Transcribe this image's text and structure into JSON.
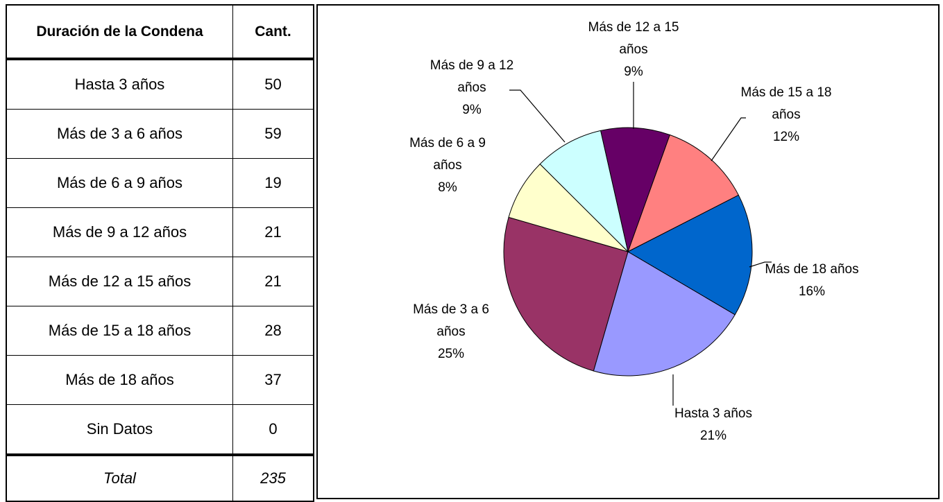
{
  "table": {
    "header": [
      "Duración de la Condena",
      "Cant."
    ],
    "rows": [
      [
        "Hasta 3 años",
        "50"
      ],
      [
        "Más de 3 a 6 años",
        "59"
      ],
      [
        "Más de 6 a 9 años",
        "19"
      ],
      [
        "Más de 9 a 12 años",
        "21"
      ],
      [
        "Más de 12 a 15 años",
        "21"
      ],
      [
        "Más de 15 a 18 años",
        "28"
      ],
      [
        "Más de 18 años",
        "37"
      ],
      [
        "Sin Datos",
        "0"
      ]
    ],
    "total": [
      "Total",
      "235"
    ]
  },
  "chart_data": {
    "type": "pie",
    "categories": [
      "Hasta 3 años",
      "Más de 3 a 6 años",
      "Más de 6 a 9 años",
      "Más de 9 a 12 años",
      "Más de 12 a 15 años",
      "Más de 15 a 18 años",
      "Más de 18 años"
    ],
    "values": [
      21,
      25,
      8,
      9,
      9,
      12,
      16
    ],
    "value_labels": [
      "21%",
      "25%",
      "8%",
      "9%",
      "9%",
      "12%",
      "16%"
    ],
    "colors": [
      "#9999ff",
      "#993366",
      "#ffffcc",
      "#ccffff",
      "#660066",
      "#ff8080",
      "#0066cc"
    ]
  }
}
